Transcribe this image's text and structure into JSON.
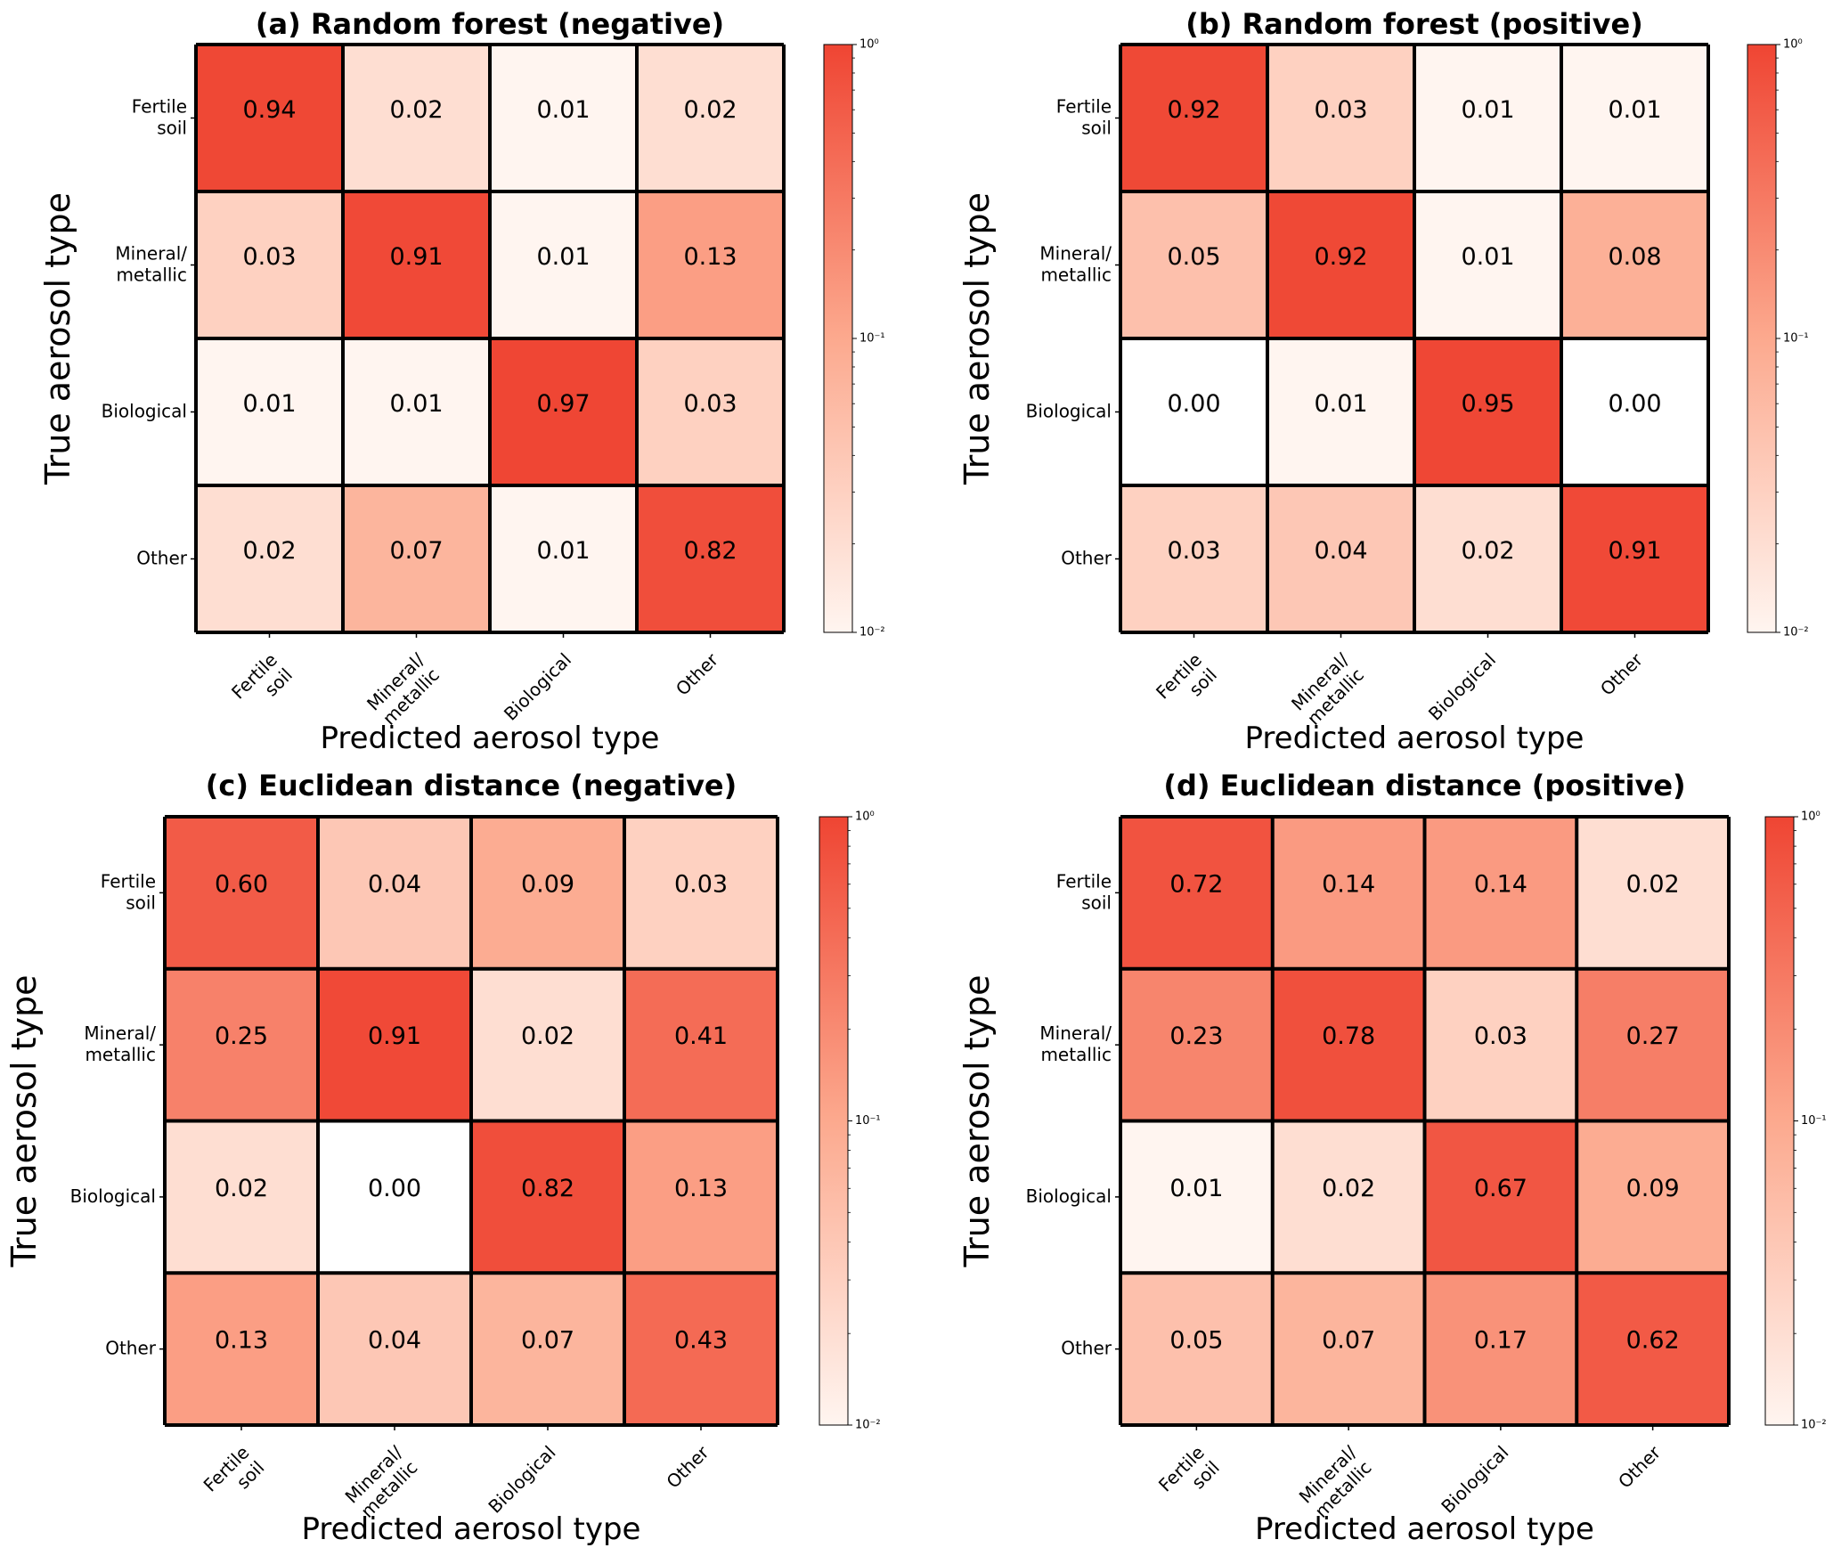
{
  "chart_data": [
    {
      "type": "heatmap",
      "title": "(a) Random forest (negative)",
      "xlabel": "Predicted aerosol type",
      "ylabel": "True aerosol type",
      "categories": [
        "Fertile\nsoil",
        "Mineral/\nmetallic",
        "Biological",
        "Other"
      ],
      "values": [
        [
          0.94,
          0.02,
          0.01,
          0.02
        ],
        [
          0.03,
          0.91,
          0.01,
          0.13
        ],
        [
          0.01,
          0.01,
          0.97,
          0.03
        ],
        [
          0.02,
          0.07,
          0.01,
          0.82
        ]
      ],
      "colorbar": {
        "scale": "log",
        "range": [
          0.01,
          1
        ],
        "ticks": [
          "10⁻²",
          "10⁻¹",
          "10⁰"
        ]
      }
    },
    {
      "type": "heatmap",
      "title": "(b) Random forest (positive)",
      "xlabel": "Predicted aerosol type",
      "ylabel": "True aerosol type",
      "categories": [
        "Fertile\nsoil",
        "Mineral/\nmetallic",
        "Biological",
        "Other"
      ],
      "values": [
        [
          0.92,
          0.03,
          0.01,
          0.01
        ],
        [
          0.05,
          0.92,
          0.01,
          0.08
        ],
        [
          0.0,
          0.01,
          0.95,
          0.0
        ],
        [
          0.03,
          0.04,
          0.02,
          0.91
        ]
      ],
      "colorbar": {
        "scale": "log",
        "range": [
          0.01,
          1
        ],
        "ticks": [
          "10⁻²",
          "10⁻¹",
          "10⁰"
        ]
      }
    },
    {
      "type": "heatmap",
      "title": "(c) Euclidean distance (negative)",
      "xlabel": "Predicted aerosol type",
      "ylabel": "True aerosol type",
      "categories": [
        "Fertile\nsoil",
        "Mineral/\nmetallic",
        "Biological",
        "Other"
      ],
      "values": [
        [
          0.6,
          0.04,
          0.09,
          0.03
        ],
        [
          0.25,
          0.91,
          0.02,
          0.41
        ],
        [
          0.02,
          0.0,
          0.82,
          0.13
        ],
        [
          0.13,
          0.04,
          0.07,
          0.43
        ]
      ],
      "colorbar": {
        "scale": "log",
        "range": [
          0.01,
          1
        ],
        "ticks": [
          "10⁻²",
          "10⁻¹",
          "10⁰"
        ]
      }
    },
    {
      "type": "heatmap",
      "title": "(d) Euclidean distance (positive)",
      "xlabel": "Predicted aerosol type",
      "ylabel": "True aerosol type",
      "categories": [
        "Fertile\nsoil",
        "Mineral/\nmetallic",
        "Biological",
        "Other"
      ],
      "values": [
        [
          0.72,
          0.14,
          0.14,
          0.02
        ],
        [
          0.23,
          0.78,
          0.03,
          0.27
        ],
        [
          0.01,
          0.02,
          0.67,
          0.09
        ],
        [
          0.05,
          0.07,
          0.17,
          0.62
        ]
      ],
      "colorbar": {
        "scale": "log",
        "range": [
          0.01,
          1
        ],
        "ticks": [
          "10⁻²",
          "10⁻¹",
          "10⁰"
        ]
      }
    }
  ],
  "colors": {
    "low": "#fff5f0",
    "mid": "#fca98e",
    "high": "#ef4533",
    "grid": "#000000"
  }
}
